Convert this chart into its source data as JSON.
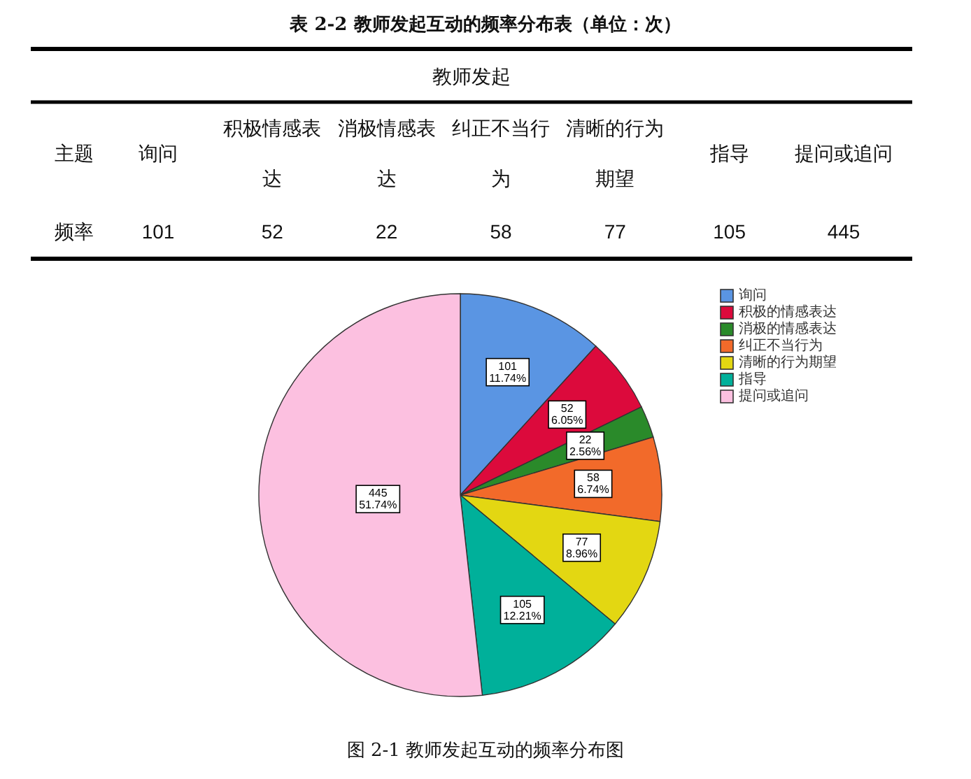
{
  "chart_data": [
    {
      "type": "other",
      "title": "表 2-2 教师发起互动的频率分布表（单位：次）",
      "subtitle": "教师发起",
      "xlabel": "主题",
      "ylabel": "频率",
      "categories": [
        "询问",
        "积极情感表达",
        "消极情感表达",
        "纠正不当行为",
        "清晰的行为期望",
        "指导",
        "提问或追问"
      ],
      "values": [
        101,
        52,
        22,
        58,
        77,
        105,
        445
      ],
      "data_labels": true
    },
    {
      "type": "pie",
      "categories": [
        "询问",
        "积极的情感表达",
        "消极的情感表达",
        "纠正不当行为",
        "清晰的行为期望",
        "指导",
        "提问或追问"
      ],
      "values": [
        101,
        52,
        22,
        58,
        77,
        105,
        445
      ],
      "colors": [
        "#5a95e3",
        "#dc0a3c",
        "#2a8a2a",
        "#f26a2a",
        "#e3d712",
        "#00b09a",
        "#fcc0e0"
      ],
      "value_labels": [
        "101\n11.74%",
        "52\n6.05%",
        "22\n2.56%",
        "58\n6.74%",
        "77\n8.96%",
        "105\n12.21%",
        "445\n51.74%"
      ],
      "legend": "top right",
      "annotations": [
        "图 2-1 教师发起互动的频率分布图"
      ]
    }
  ]
}
